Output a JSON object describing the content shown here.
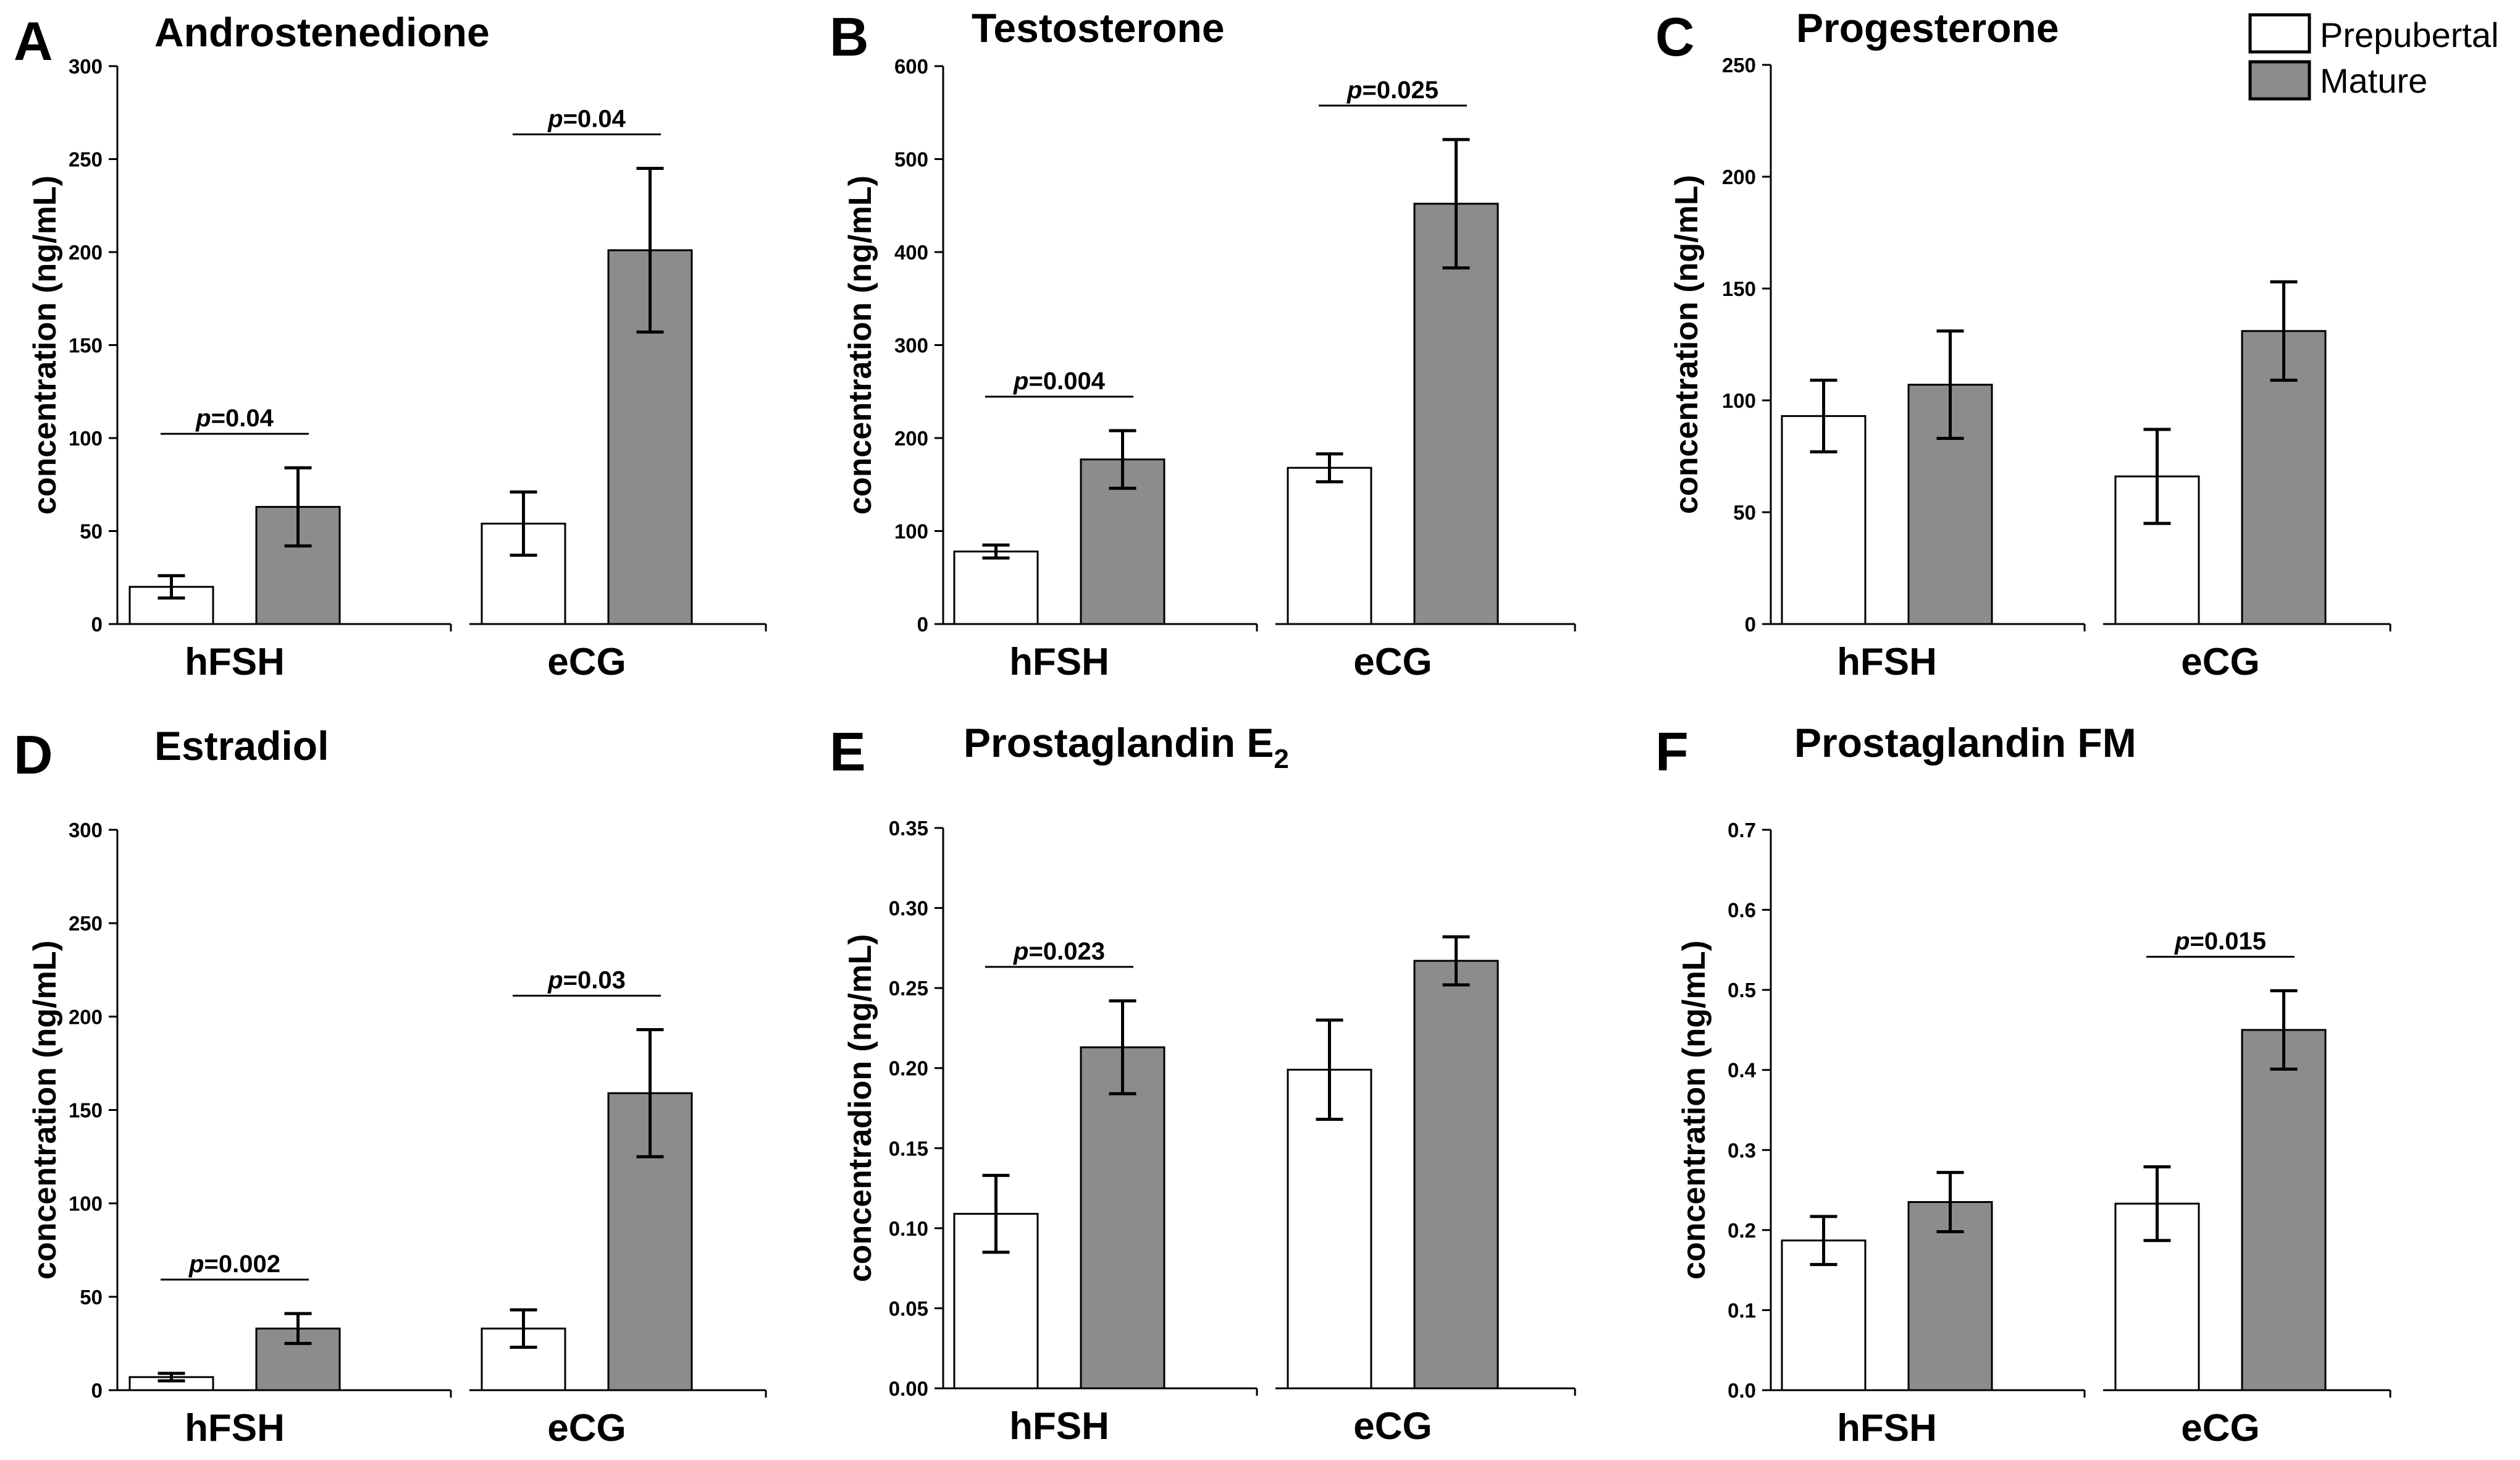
{
  "legend": [
    {
      "label": "Prepubertal",
      "color": "#ffffff"
    },
    {
      "label": "Mature",
      "color": "#8c8c8c"
    }
  ],
  "colors": {
    "prepubertal": "#ffffff",
    "mature": "#8c8c8c",
    "axis": "#000000"
  },
  "chart_data": [
    {
      "type": "bar",
      "letter": "A",
      "title": "Androstenedione",
      "ylabel": "concentration (ng/mL)",
      "ylim": [
        0,
        300
      ],
      "yticks": [
        "0",
        "50",
        "100",
        "150",
        "200",
        "250",
        "300"
      ],
      "categories": [
        "hFSH",
        "eCG"
      ],
      "series": [
        {
          "name": "Prepubertal",
          "values": [
            20,
            54
          ],
          "errors": [
            6,
            17
          ]
        },
        {
          "name": "Mature",
          "values": [
            63,
            201
          ],
          "errors": [
            21,
            44
          ]
        }
      ],
      "annotations": [
        {
          "category": 0,
          "prefix": "p",
          "text": "=0.04"
        },
        {
          "category": 1,
          "prefix": "p",
          "text": "=0.04"
        }
      ]
    },
    {
      "type": "bar",
      "letter": "B",
      "title": "Testosterone",
      "ylabel": "concentration (ng/mL)",
      "ylim": [
        0,
        600
      ],
      "yticks": [
        "0",
        "100",
        "200",
        "300",
        "400",
        "500",
        "600"
      ],
      "categories": [
        "hFSH",
        "eCG"
      ],
      "series": [
        {
          "name": "Prepubertal",
          "values": [
            78,
            168
          ],
          "errors": [
            7,
            15
          ]
        },
        {
          "name": "Mature",
          "values": [
            177,
            452
          ],
          "errors": [
            31,
            69
          ]
        }
      ],
      "annotations": [
        {
          "category": 0,
          "prefix": "p",
          "text": "=0.004"
        },
        {
          "category": 1,
          "prefix": "p",
          "text": "=0.025"
        }
      ]
    },
    {
      "type": "bar",
      "letter": "C",
      "title": "Progesterone",
      "ylabel": "concentration (ng/mL)",
      "ylim": [
        0,
        250
      ],
      "yticks": [
        "0",
        "50",
        "100",
        "150",
        "200",
        "250"
      ],
      "categories": [
        "hFSH",
        "eCG"
      ],
      "series": [
        {
          "name": "Prepubertal",
          "values": [
            93,
            66
          ],
          "errors": [
            16,
            21
          ]
        },
        {
          "name": "Mature",
          "values": [
            107,
            131
          ],
          "errors": [
            24,
            22
          ]
        }
      ],
      "annotations": []
    },
    {
      "type": "bar",
      "letter": "D",
      "title": "Estradiol",
      "ylabel": "concentration (ng/mL)",
      "ylim": [
        0,
        300
      ],
      "yticks": [
        "0",
        "50",
        "100",
        "150",
        "200",
        "250",
        "300"
      ],
      "categories": [
        "hFSH",
        "eCG"
      ],
      "series": [
        {
          "name": "Prepubertal",
          "values": [
            7,
            33
          ],
          "errors": [
            2,
            10
          ]
        },
        {
          "name": "Mature",
          "values": [
            33,
            159
          ],
          "errors": [
            8,
            34
          ]
        }
      ],
      "annotations": [
        {
          "category": 0,
          "prefix": "p",
          "text": "=0.002"
        },
        {
          "category": 1,
          "prefix": "p",
          "text": "=0.03"
        }
      ]
    },
    {
      "type": "bar",
      "letter": "E",
      "title": "Prostaglandin E",
      "title_sub": "2",
      "ylabel": "concentradion  (ng/mL)",
      "ylim": [
        0,
        0.35
      ],
      "yticks": [
        "0.00",
        "0.05",
        "0.10",
        "0.15",
        "0.20",
        "0.25",
        "0.30",
        "0.35"
      ],
      "categories": [
        "hFSH",
        "eCG"
      ],
      "series": [
        {
          "name": "Prepubertal",
          "values": [
            0.109,
            0.199
          ],
          "errors": [
            0.024,
            0.031
          ]
        },
        {
          "name": "Mature",
          "values": [
            0.213,
            0.267
          ],
          "errors": [
            0.029,
            0.015
          ]
        }
      ],
      "annotations": [
        {
          "category": 0,
          "prefix": "p",
          "text": "=0.023"
        }
      ]
    },
    {
      "type": "bar",
      "letter": "F",
      "title": "Prostaglandin FM",
      "ylabel": "concentration (ng/mL)",
      "ylim": [
        0,
        0.7
      ],
      "yticks": [
        "0.0",
        "0.1",
        "0.2",
        "0.3",
        "0.4",
        "0.5",
        "0.6",
        "0.7"
      ],
      "categories": [
        "hFSH",
        "eCG"
      ],
      "series": [
        {
          "name": "Prepubertal",
          "values": [
            0.187,
            0.233
          ],
          "errors": [
            0.03,
            0.046
          ]
        },
        {
          "name": "Mature",
          "values": [
            0.235,
            0.45
          ],
          "errors": [
            0.037,
            0.049
          ]
        }
      ],
      "annotations": [
        {
          "category": 1,
          "prefix": "p",
          "text": "=0.015"
        }
      ]
    }
  ]
}
